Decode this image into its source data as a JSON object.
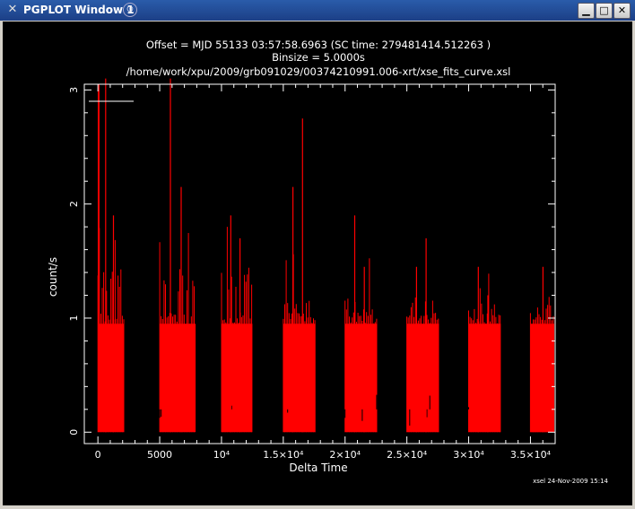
{
  "window": {
    "title": "PGPLOT Window 1",
    "icons": {
      "app": "x-icon",
      "pin": "pin-icon",
      "minimize": "minimize-icon",
      "maximize": "maximize-icon",
      "close": "close-icon"
    }
  },
  "plot": {
    "header_line1": "Offset = MJD  55133  03:57:58.6963 (SC time:     279481414.512263 )",
    "header_line2": "Binsize =      5.0000s",
    "header_line3": "/home/work/xpu/2009/grb091029/00374210991.006-xrt/xse_fits_curve.xsl",
    "footer": "xsel 24-Nov-2009 15:14",
    "background": "#000000",
    "axis_color": "#ffffff",
    "data_color": "#ff0000"
  },
  "chart_data": {
    "type": "bar",
    "title": "",
    "xlabel": "Delta Time",
    "ylabel": "count/s",
    "xlim": [
      -1100,
      37000
    ],
    "ylim": [
      -0.1,
      3.05
    ],
    "x_ticks": [
      {
        "value": 0,
        "label": "0"
      },
      {
        "value": 5000,
        "label": "5000"
      },
      {
        "value": 10000,
        "label": "10⁴"
      },
      {
        "value": 15000,
        "label": "1.5×10⁴"
      },
      {
        "value": 20000,
        "label": "2×10⁴"
      },
      {
        "value": 25000,
        "label": "2.5×10⁴"
      },
      {
        "value": 30000,
        "label": "3×10⁴"
      },
      {
        "value": 35000,
        "label": "3.5×10⁴"
      }
    ],
    "y_ticks": [
      {
        "value": 0,
        "label": "0"
      },
      {
        "value": 1,
        "label": "1"
      },
      {
        "value": 2,
        "label": "2"
      },
      {
        "value": 3,
        "label": "3"
      }
    ],
    "legend_line": true,
    "segments": [
      {
        "start": 0,
        "end": 2100,
        "base": 0.95,
        "top": 1.45,
        "peak": 3.3,
        "alt": 1.9
      },
      {
        "start": 5000,
        "end": 7900,
        "base": 0.95,
        "top": 1.45,
        "peak": 3.4,
        "alt": 2.15
      },
      {
        "start": 10000,
        "end": 12500,
        "base": 0.95,
        "top": 1.45,
        "peak": 1.9,
        "alt": 1.7
      },
      {
        "start": 15000,
        "end": 17600,
        "base": 0.95,
        "top": 1.2,
        "peak": 2.15,
        "alt": 2.75
      },
      {
        "start": 20000,
        "end": 22600,
        "base": 0.95,
        "top": 1.2,
        "peak": 1.9,
        "alt": 1.45
      },
      {
        "start": 25000,
        "end": 27600,
        "base": 0.95,
        "top": 1.2,
        "peak": 1.45,
        "alt": 1.7
      },
      {
        "start": 30000,
        "end": 32600,
        "base": 0.95,
        "top": 1.2,
        "peak": 1.45,
        "alt": 1.2
      }
    ]
  }
}
